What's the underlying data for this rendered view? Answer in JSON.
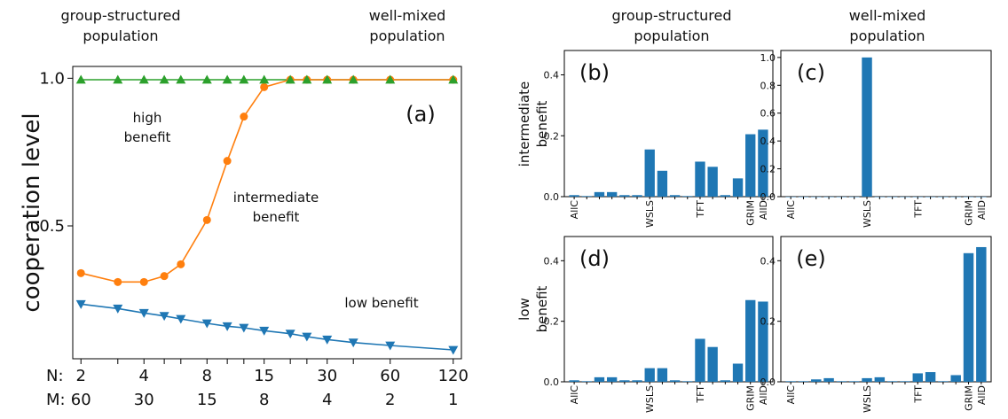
{
  "headers": {
    "left_top": "group-structured\npopulation",
    "left_right": "well-mixed\npopulation",
    "col1": "group-structured\npopulation",
    "col2": "well-mixed\npopulation"
  },
  "row_labels": {
    "row1": "intermediate\nbenefit",
    "row2": "low\nbenefit"
  },
  "chart_data": [
    {
      "type": "line",
      "panel": "(a)",
      "ylabel": "cooperation level",
      "ylim": [
        0.0,
        1.0
      ],
      "yticks": [
        "0.5",
        "1.0"
      ],
      "xticks_N": [
        "2",
        "4",
        "8",
        "15",
        "30",
        "60",
        "120"
      ],
      "xticks_M": [
        "60",
        "30",
        "15",
        "8",
        "4",
        "2",
        "1"
      ],
      "xtick_prefix_N": "N:",
      "xtick_prefix_M": "M:",
      "x": [
        2,
        3,
        4,
        5,
        6,
        8,
        10,
        12,
        15,
        20,
        24,
        30,
        40,
        60,
        120
      ],
      "series": [
        {
          "key": "high",
          "color": "#2ca02c",
          "marker": "triangle-up",
          "values": [
            0.995,
            0.995,
            0.995,
            0.995,
            0.995,
            0.995,
            0.995,
            0.995,
            0.995,
            0.995,
            0.995,
            0.995,
            0.995,
            0.995,
            0.995
          ]
        },
        {
          "key": "intermediate",
          "color": "#ff7f0e",
          "marker": "circle",
          "values": [
            0.34,
            0.31,
            0.31,
            0.33,
            0.37,
            0.52,
            0.72,
            0.87,
            0.97,
            0.995,
            0.995,
            0.995,
            0.995,
            0.995,
            0.995
          ]
        },
        {
          "key": "low",
          "color": "#1f77b4",
          "marker": "triangle-down",
          "values": [
            0.235,
            0.22,
            0.205,
            0.195,
            0.185,
            0.17,
            0.16,
            0.155,
            0.145,
            0.135,
            0.125,
            0.115,
            0.105,
            0.095,
            0.08
          ]
        }
      ],
      "annotations": {
        "high": "high\nbenefit",
        "intermediate": "intermediate\nbenefit",
        "low": "low benefit"
      }
    },
    {
      "type": "bar",
      "panel": "(b)",
      "ylim": [
        0,
        0.48
      ],
      "yticks": [
        "0.0",
        "0.2",
        "0.4"
      ],
      "values": [
        0.005,
        0.002,
        0.015,
        0.015,
        0.005,
        0.005,
        0.155,
        0.085,
        0.005,
        0.002,
        0.115,
        0.098,
        0.005,
        0.06,
        0.205,
        0.22
      ],
      "label_positions": [
        0,
        6,
        10,
        14,
        15
      ],
      "category_labels": [
        "AllC",
        "WSLS",
        "TFT",
        "GRIM",
        "AllD"
      ]
    },
    {
      "type": "bar",
      "panel": "(c)",
      "ylim": [
        0,
        1.05
      ],
      "yticks": [
        "0.0",
        "0.2",
        "0.4",
        "0.6",
        "0.8",
        "1.0"
      ],
      "values": [
        0,
        0,
        0,
        0,
        0,
        0,
        1.0,
        0,
        0,
        0,
        0,
        0,
        0,
        0,
        0,
        0
      ],
      "label_positions": [
        0,
        6,
        10,
        14,
        15
      ],
      "category_labels": [
        "AllC",
        "WSLS",
        "TFT",
        "GRIM",
        "AllD"
      ]
    },
    {
      "type": "bar",
      "panel": "(d)",
      "ylim": [
        0,
        0.48
      ],
      "yticks": [
        "0.0",
        "0.2",
        "0.4"
      ],
      "values": [
        0.005,
        0.002,
        0.015,
        0.015,
        0.005,
        0.005,
        0.045,
        0.045,
        0.005,
        0.002,
        0.142,
        0.115,
        0.005,
        0.06,
        0.27,
        0.265
      ],
      "label_positions": [
        0,
        6,
        10,
        14,
        15
      ],
      "category_labels": [
        "AllC",
        "WSLS",
        "TFT",
        "GRIM",
        "AllD"
      ]
    },
    {
      "type": "bar",
      "panel": "(e)",
      "ylim": [
        0,
        0.48
      ],
      "yticks": [
        "0.0",
        "0.2",
        "0.4"
      ],
      "values": [
        0.002,
        0.002,
        0.008,
        0.012,
        0.002,
        0.002,
        0.012,
        0.015,
        0.002,
        0.002,
        0.028,
        0.032,
        0.002,
        0.022,
        0.425,
        0.445
      ],
      "label_positions": [
        0,
        6,
        10,
        14,
        15
      ],
      "category_labels": [
        "AllC",
        "WSLS",
        "TFT",
        "GRIM",
        "AllD"
      ]
    }
  ],
  "colors": {
    "bar": "#1f77b4"
  }
}
